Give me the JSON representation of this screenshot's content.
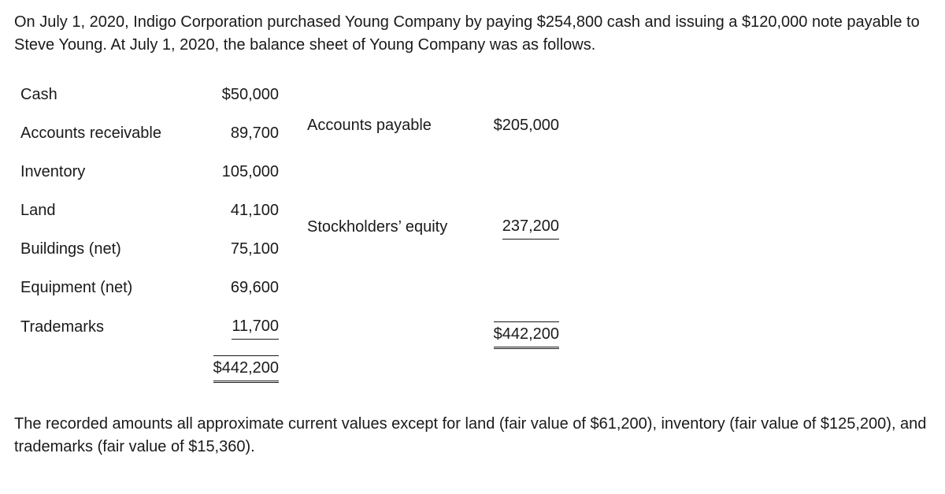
{
  "intro": "On July 1, 2020, Indigo Corporation purchased Young Company by paying $254,800 cash and issuing a $120,000 note payable to Steve Young. At July 1, 2020, the balance sheet of Young Company was as follows.",
  "assets": [
    {
      "label": "Cash",
      "amount": "$50,000"
    },
    {
      "label": "Accounts receivable",
      "amount": "89,700"
    },
    {
      "label": "Inventory",
      "amount": "105,000"
    },
    {
      "label": "Land",
      "amount": "41,100"
    },
    {
      "label": "Buildings (net)",
      "amount": "75,100"
    },
    {
      "label": "Equipment (net)",
      "amount": "69,600"
    },
    {
      "label": "Trademarks",
      "amount": "11,700"
    }
  ],
  "assets_total": "$442,200",
  "liab_equity": [
    {
      "label": "Accounts payable",
      "amount": "$205,000"
    },
    {
      "label": "Stockholders’ equity",
      "amount": "237,200"
    }
  ],
  "liab_equity_total": "$442,200",
  "note": "The recorded amounts all approximate current values except for land (fair value of $61,200), inventory (fair value of $125,200), and trademarks (fair value of $15,360)."
}
